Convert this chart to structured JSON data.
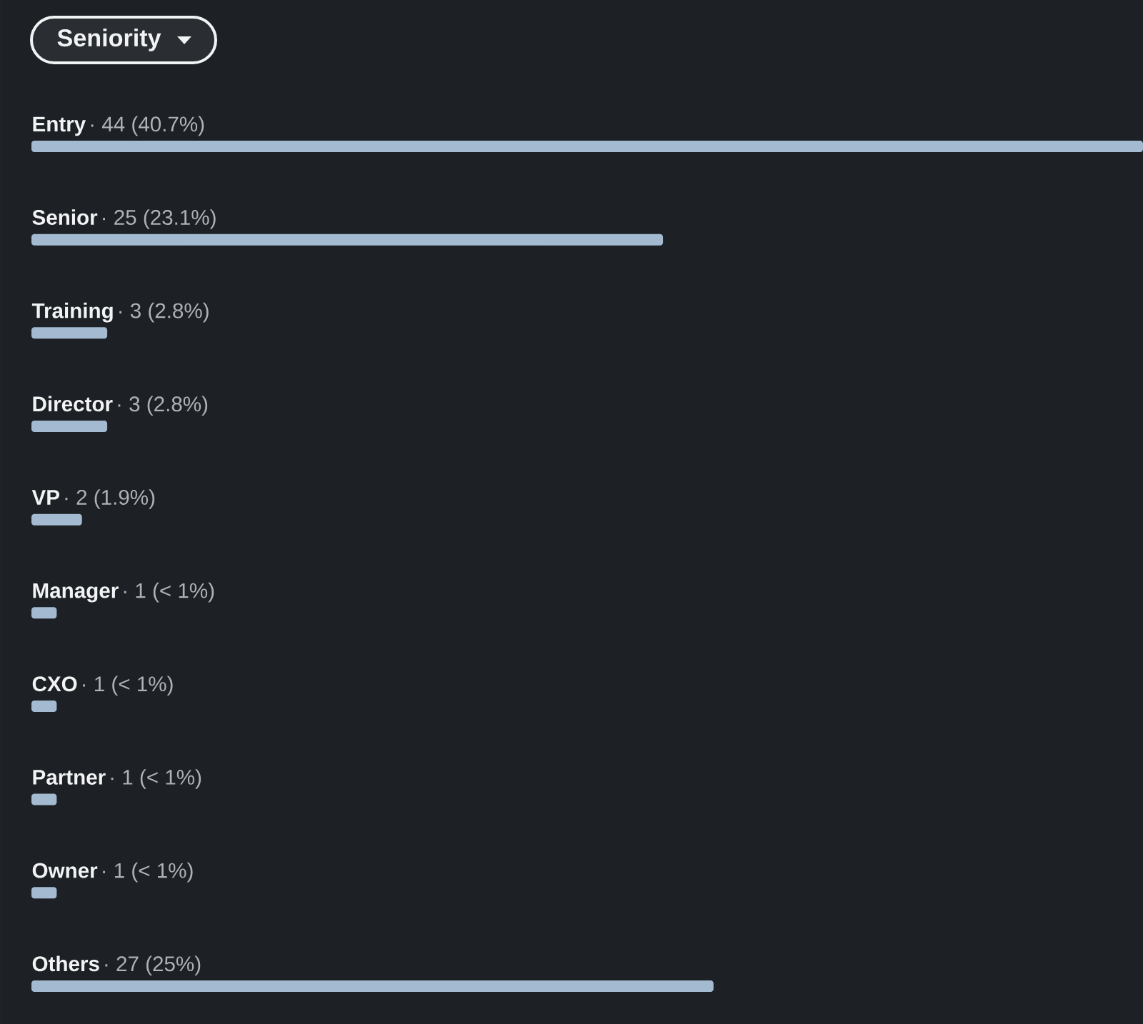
{
  "chart_data": {
    "type": "bar",
    "orientation": "horizontal",
    "title": "Seniority",
    "categories": [
      "Entry",
      "Senior",
      "Training",
      "Director",
      "VP",
      "Manager",
      "CXO",
      "Partner",
      "Owner",
      "Others"
    ],
    "values": [
      44,
      25,
      3,
      3,
      2,
      1,
      1,
      1,
      1,
      27
    ],
    "value_labels": [
      "· 44 (40.7%)",
      "· 25 (23.1%)",
      "· 3 (2.8%)",
      "· 3 (2.8%)",
      "· 2 (1.9%)",
      "· 1 (< 1%)",
      "· 1 (< 1%)",
      "· 1 (< 1%)",
      "· 1 (< 1%)",
      "· 27 (25%)"
    ],
    "color": "#a3bad1"
  }
}
